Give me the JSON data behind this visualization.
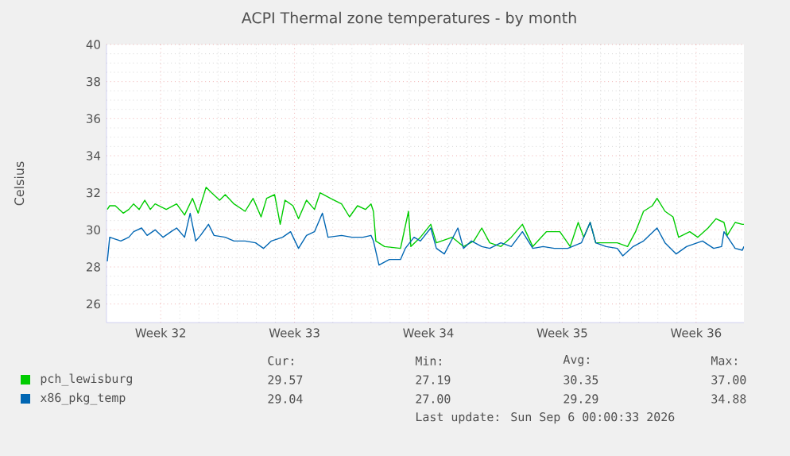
{
  "chart_data": {
    "type": "line",
    "title": "ACPI Thermal zone temperatures - by month",
    "ylabel": "Celsius",
    "xlim": [
      "2026-08-03T16:00",
      "2026-09-06T00:00"
    ],
    "ylim": [
      25,
      40
    ],
    "xticks": [
      {
        "value": "2026-08-06T12:00",
        "label": "Week 32"
      },
      {
        "value": "2026-08-13T12:00",
        "label": "Week 33"
      },
      {
        "value": "2026-08-20T12:00",
        "label": "Week 34"
      },
      {
        "value": "2026-08-27T12:00",
        "label": "Week 35"
      },
      {
        "value": "2026-09-03T12:00",
        "label": "Week 36"
      }
    ],
    "yticks": [
      26,
      28,
      30,
      32,
      34,
      36,
      38,
      40
    ],
    "grid": true,
    "legend": "bottom",
    "series": [
      {
        "name": "pch_lewisburg",
        "color": "#00cc00",
        "x": [
          "2026-08-03T17:00",
          "2026-08-03T20:00",
          "2026-08-04T03:00",
          "2026-08-04T13:00",
          "2026-08-04T20:00",
          "2026-08-05T02:00",
          "2026-08-05T09:00",
          "2026-08-05T16:00",
          "2026-08-05T23:00",
          "2026-08-06T05:00",
          "2026-08-06T19:00",
          "2026-08-07T08:00",
          "2026-08-07T18:00",
          "2026-08-08T04:00",
          "2026-08-08T11:00",
          "2026-08-08T21:00",
          "2026-08-09T04:00",
          "2026-08-09T14:00",
          "2026-08-09T21:00",
          "2026-08-10T08:00",
          "2026-08-10T22:00",
          "2026-08-11T08:00",
          "2026-08-11T18:00",
          "2026-08-12T01:00",
          "2026-08-12T11:00",
          "2026-08-12T18:00",
          "2026-08-13T00:00",
          "2026-08-13T10:00",
          "2026-08-13T17:00",
          "2026-08-14T03:00",
          "2026-08-14T13:00",
          "2026-08-14T20:00",
          "2026-08-15T09:00",
          "2026-08-15T23:00",
          "2026-08-16T09:00",
          "2026-08-16T19:00",
          "2026-08-17T05:00",
          "2026-08-17T12:00",
          "2026-08-17T15:00",
          "2026-08-17T18:00",
          "2026-08-18T05:00",
          "2026-08-19T01:00",
          "2026-08-19T11:00",
          "2026-08-19T14:00",
          "2026-08-20T02:00",
          "2026-08-20T15:00",
          "2026-08-20T22:00",
          "2026-08-21T18:00",
          "2026-08-22T08:00",
          "2026-08-22T21:00",
          "2026-08-23T07:00",
          "2026-08-23T17:00",
          "2026-08-24T07:00",
          "2026-08-24T20:00",
          "2026-08-25T10:00",
          "2026-08-25T23:00",
          "2026-08-26T16:00",
          "2026-08-27T09:00",
          "2026-08-27T22:00",
          "2026-08-28T08:00",
          "2026-08-28T15:00",
          "2026-08-28T23:00",
          "2026-08-29T06:00",
          "2026-08-29T19:00",
          "2026-08-30T09:00",
          "2026-08-30T22:00",
          "2026-08-31T08:00",
          "2026-08-31T18:00",
          "2026-09-01T05:00",
          "2026-09-01T11:00",
          "2026-09-01T21:00",
          "2026-09-02T07:00",
          "2026-09-02T14:00",
          "2026-09-03T04:00",
          "2026-09-03T14:00",
          "2026-09-04T03:00",
          "2026-09-04T13:00",
          "2026-09-04T23:00",
          "2026-09-05T03:00",
          "2026-09-05T13:00",
          "2026-09-05T22:00",
          "2026-09-06T00:00"
        ],
        "values": [
          31.1,
          31.3,
          31.3,
          30.9,
          31.1,
          31.4,
          31.1,
          31.6,
          31.1,
          31.4,
          31.1,
          31.4,
          30.8,
          31.7,
          30.9,
          32.3,
          32.0,
          31.6,
          31.9,
          31.4,
          31.0,
          31.7,
          30.7,
          31.7,
          31.9,
          30.3,
          31.6,
          31.3,
          30.6,
          31.6,
          31.1,
          32.0,
          31.7,
          31.4,
          30.7,
          31.3,
          31.1,
          31.4,
          31.0,
          29.4,
          29.1,
          29.0,
          31.0,
          29.1,
          29.6,
          30.3,
          29.3,
          29.6,
          29.1,
          29.4,
          30.1,
          29.3,
          29.1,
          29.6,
          30.3,
          29.1,
          29.9,
          29.9,
          29.1,
          30.4,
          29.6,
          30.4,
          29.3,
          29.3,
          29.3,
          29.1,
          29.9,
          31.0,
          31.3,
          31.7,
          31.0,
          30.7,
          29.6,
          29.9,
          29.6,
          30.1,
          30.6,
          30.4,
          29.7,
          30.4,
          30.3,
          30.3
        ]
      },
      {
        "name": "x86_pkg_temp",
        "color": "#0066b3",
        "x": [
          "2026-08-03T17:00",
          "2026-08-03T20:00",
          "2026-08-04T10:00",
          "2026-08-04T20:00",
          "2026-08-05T02:00",
          "2026-08-05T12:00",
          "2026-08-05T19:00",
          "2026-08-06T05:00",
          "2026-08-06T15:00",
          "2026-08-07T01:00",
          "2026-08-07T08:00",
          "2026-08-07T18:00",
          "2026-08-08T01:00",
          "2026-08-08T08:00",
          "2026-08-08T14:00",
          "2026-08-09T00:00",
          "2026-08-09T07:00",
          "2026-08-09T21:00",
          "2026-08-10T08:00",
          "2026-08-10T22:00",
          "2026-08-11T11:00",
          "2026-08-11T21:00",
          "2026-08-12T07:00",
          "2026-08-12T21:00",
          "2026-08-13T07:00",
          "2026-08-13T17:00",
          "2026-08-14T03:00",
          "2026-08-14T13:00",
          "2026-08-14T23:00",
          "2026-08-15T06:00",
          "2026-08-15T23:00",
          "2026-08-16T12:00",
          "2026-08-17T02:00",
          "2026-08-17T12:00",
          "2026-08-17T15:00",
          "2026-08-17T22:00",
          "2026-08-18T11:00",
          "2026-08-19T01:00",
          "2026-08-19T07:00",
          "2026-08-19T18:00",
          "2026-08-20T02:00",
          "2026-08-20T15:00",
          "2026-08-20T22:00",
          "2026-08-21T08:00",
          "2026-08-22T01:00",
          "2026-08-22T08:00",
          "2026-08-22T18:00",
          "2026-08-23T07:00",
          "2026-08-23T17:00",
          "2026-08-24T07:00",
          "2026-08-24T20:00",
          "2026-08-25T10:00",
          "2026-08-25T23:00",
          "2026-08-26T12:00",
          "2026-08-27T02:00",
          "2026-08-27T19:00",
          "2026-08-28T12:00",
          "2026-08-28T23:00",
          "2026-08-29T06:00",
          "2026-08-29T19:00",
          "2026-08-30T09:00",
          "2026-08-30T16:00",
          "2026-08-31T05:00",
          "2026-08-31T18:00",
          "2026-09-01T11:00",
          "2026-09-01T21:00",
          "2026-09-02T11:00",
          "2026-09-03T00:00",
          "2026-09-03T20:00",
          "2026-09-04T10:00",
          "2026-09-04T20:00",
          "2026-09-04T23:00",
          "2026-09-05T13:00",
          "2026-09-05T22:00",
          "2026-09-06T00:00"
        ],
        "values": [
          28.3,
          29.6,
          29.4,
          29.6,
          29.9,
          30.1,
          29.7,
          30.0,
          29.6,
          29.9,
          30.1,
          29.6,
          30.9,
          29.4,
          29.7,
          30.3,
          29.7,
          29.6,
          29.4,
          29.4,
          29.3,
          29.0,
          29.4,
          29.6,
          29.9,
          29.0,
          29.7,
          29.9,
          30.9,
          29.6,
          29.7,
          29.6,
          29.6,
          29.7,
          29.4,
          28.1,
          28.4,
          28.4,
          29.0,
          29.6,
          29.4,
          30.1,
          29.0,
          28.7,
          30.1,
          29.0,
          29.4,
          29.1,
          29.0,
          29.3,
          29.1,
          29.9,
          29.0,
          29.1,
          29.0,
          29.0,
          29.3,
          30.4,
          29.3,
          29.1,
          29.0,
          28.6,
          29.1,
          29.4,
          30.1,
          29.3,
          28.7,
          29.1,
          29.4,
          29.0,
          29.1,
          29.9,
          29.0,
          28.9,
          29.1
        ]
      }
    ],
    "annotations": [
      "Cur:",
      "Min:",
      "Avg:",
      "Max:",
      "29.57",
      "27.19",
      "30.35",
      "37.00",
      "29.04",
      "27.00",
      "29.29",
      "34.88",
      "Last update: Sun Sep  6 00:00:33 2026"
    ]
  }
}
